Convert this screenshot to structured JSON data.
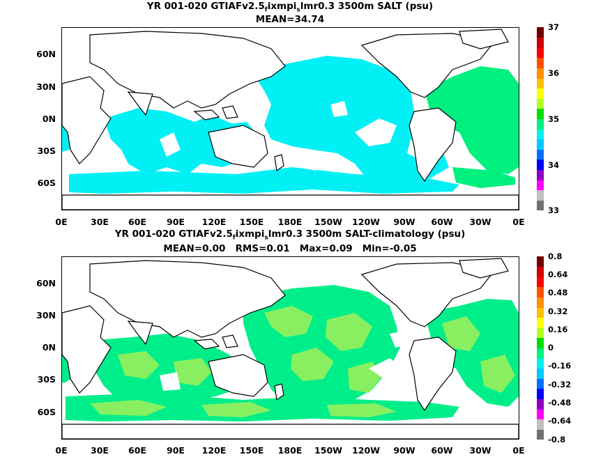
{
  "panel1": {
    "title_parts": [
      "YR 001-020 GTIAFv2.5",
      "f",
      "ixmpi",
      "s",
      "lmr0.3 3500m SALT (psu)"
    ],
    "subtitle": "MEAN=34.74",
    "lat_labels": [
      "60N",
      "30N",
      "0N",
      "30S",
      "60S"
    ],
    "lon_labels": [
      "0E",
      "30E",
      "60E",
      "90E",
      "120E",
      "150E",
      "180E",
      "150W",
      "120W",
      "90W",
      "60W",
      "30W",
      "0E"
    ],
    "colorbar_labels": [
      "37",
      "36",
      "35",
      "34",
      "33"
    ],
    "field_color_main": "#00f0f5",
    "field_color_atlantic": "#00f080"
  },
  "panel2": {
    "title_parts": [
      "YR 001-020 GTIAFv2.5",
      "f",
      "ixmpi",
      "s",
      "lmr0.3 3500m SALT-climatology (psu)"
    ],
    "subtitle": "MEAN=0.00   RMS=0.01   Max=0.09   Min=-0.05",
    "lat_labels": [
      "60N",
      "30N",
      "0N",
      "30S",
      "60S"
    ],
    "lon_labels": [
      "0E",
      "30E",
      "60E",
      "90E",
      "120E",
      "150E",
      "180E",
      "150W",
      "120W",
      "90W",
      "60W",
      "30W",
      "0E"
    ],
    "colorbar_labels": [
      "0.8",
      "0.64",
      "0.48",
      "0.32",
      "0.16",
      "0",
      "-0.16",
      "-0.32",
      "-0.48",
      "-0.64",
      "-0.8"
    ],
    "field_color_main": "#00ee8a",
    "field_color_alt": "#88f060"
  },
  "colorbar_colors": [
    "#707070",
    "#c0c0c0",
    "#ff00ff",
    "#9000c0",
    "#0000ff",
    "#0070ff",
    "#00c8ff",
    "#00f0f0",
    "#00f080",
    "#00dd00",
    "#b0ff20",
    "#ffff00",
    "#ffc000",
    "#ff9000",
    "#ff5000",
    "#ff0000",
    "#d00000",
    "#700000"
  ]
}
